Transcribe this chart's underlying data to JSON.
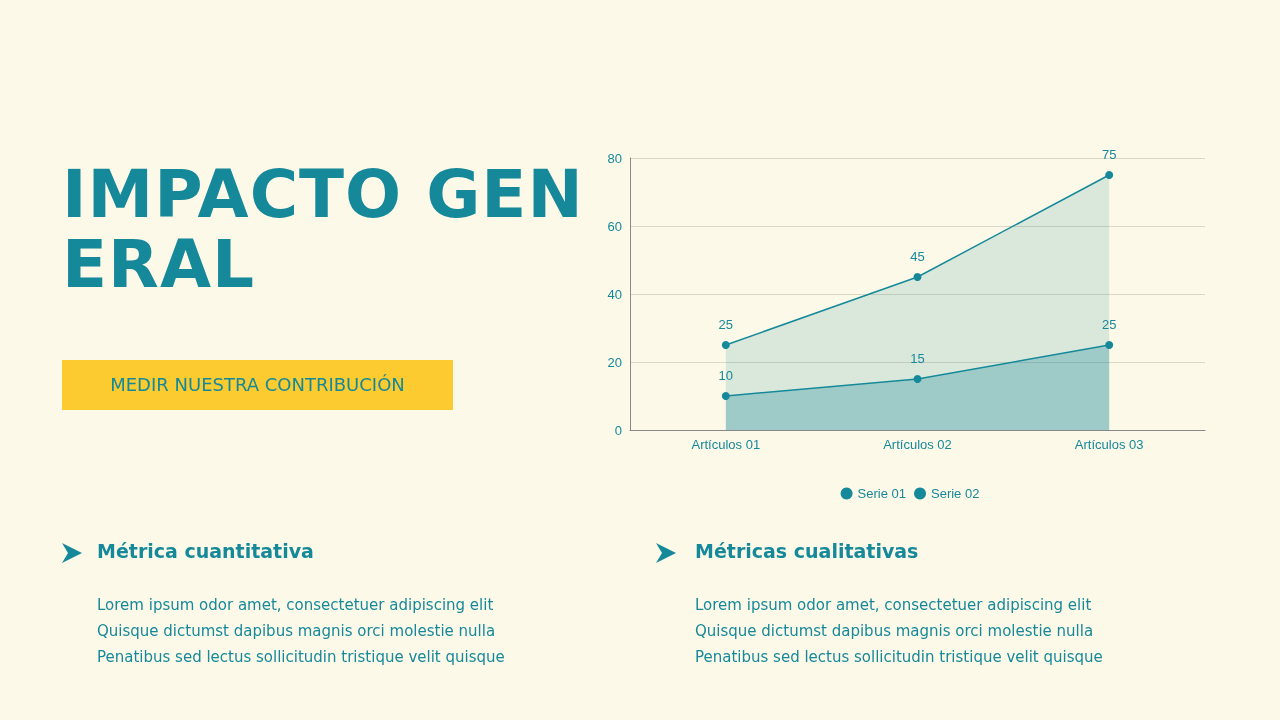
{
  "chart_data": {
    "type": "area",
    "title": "IMPACTO GENERAL",
    "subtitle": "MEDIR NUESTRA CONTRIBUCIÓN",
    "categories": [
      "Artículos 01",
      "Artículos 02",
      "Artículos 03"
    ],
    "series": [
      {
        "name": "Serie 01",
        "color": "#15899a",
        "values": [
          10,
          15,
          25
        ]
      },
      {
        "name": "Serie 02",
        "color": "#15899a",
        "values": [
          25,
          45,
          75
        ]
      }
    ],
    "ylim": [
      0,
      80
    ],
    "yticks": [
      0,
      20,
      40,
      60,
      80
    ],
    "grid": "y",
    "legend": "bottom",
    "marker": "circle",
    "line_style": "solid",
    "data_labels": true,
    "annotations": [
      "Métrica cuantitativa",
      "Lorem ipsum odor amet, consectetuer adipiscing elit\nQuisque dictumst dapibus magnis orci molestie nulla\nPenatibus sed lectus sollicitudin tristique velit quisque",
      "Métricas cualitativas",
      "Lorem ipsum odor amet, consectetuer adipiscing elit\nQuisque dictumst dapibus magnis orci molestie nulla\nPenatibus sed lectus sollicitudin tristique velit quisque"
    ]
  }
}
